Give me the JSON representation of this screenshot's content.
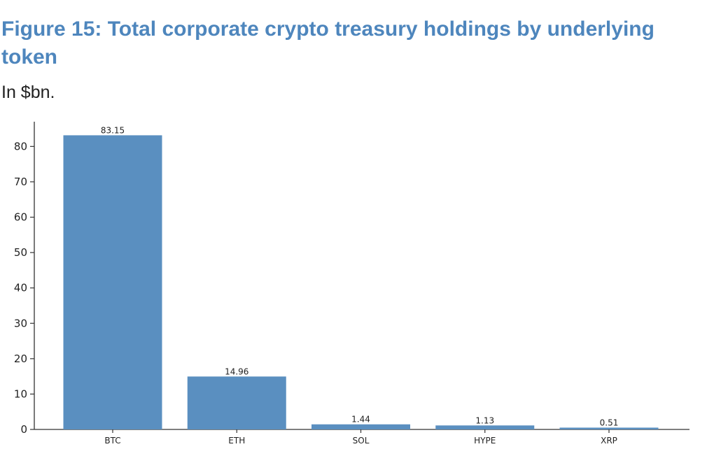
{
  "title": "Figure 15: Total corporate crypto treasury holdings by underlying token",
  "subtitle": "In $bn.",
  "chart_data": {
    "type": "bar",
    "categories": [
      "BTC",
      "ETH",
      "SOL",
      "HYPE",
      "XRP"
    ],
    "values": [
      83.15,
      14.96,
      1.44,
      1.13,
      0.51
    ],
    "value_labels": [
      "83.15",
      "14.96",
      "1.44",
      "1.13",
      "0.51"
    ],
    "yticks": [
      0,
      10,
      20,
      30,
      40,
      50,
      60,
      70,
      80
    ],
    "ylim": [
      0,
      85
    ],
    "xlabel": "",
    "ylabel": "",
    "grid": false,
    "bar_color": "#5a8fc0"
  }
}
